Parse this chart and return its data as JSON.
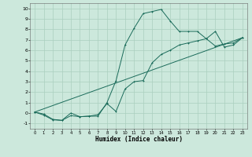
{
  "title": "",
  "xlabel": "Humidex (Indice chaleur)",
  "ylabel": "",
  "xlim": [
    -0.5,
    23.5
  ],
  "ylim": [
    -1.5,
    10.5
  ],
  "bg_color": "#cce8dc",
  "grid_color": "#aacfbf",
  "line_color": "#1a6b5a",
  "line1_x": [
    0,
    1,
    2,
    3,
    4,
    5,
    6,
    7,
    8,
    9,
    10,
    11,
    12,
    13,
    14,
    15,
    16,
    17,
    18,
    19,
    20,
    21,
    22,
    23
  ],
  "line1_y": [
    0.1,
    -0.2,
    -0.65,
    -0.7,
    -0.25,
    -0.35,
    -0.3,
    -0.3,
    1.0,
    3.1,
    6.5,
    8.1,
    9.5,
    9.7,
    9.9,
    8.8,
    7.8,
    7.8,
    7.8,
    7.1,
    7.8,
    6.3,
    6.5,
    7.2
  ],
  "line2_x": [
    0,
    1,
    2,
    3,
    4,
    5,
    6,
    7,
    8,
    9,
    10,
    11,
    12,
    13,
    14,
    15,
    16,
    17,
    18,
    19,
    20,
    21,
    22,
    23
  ],
  "line2_y": [
    0.1,
    -0.1,
    -0.6,
    -0.7,
    0.0,
    -0.35,
    -0.3,
    -0.15,
    0.9,
    0.15,
    2.3,
    3.0,
    3.1,
    4.8,
    5.6,
    6.0,
    6.5,
    6.7,
    6.9,
    7.1,
    6.4,
    6.6,
    6.7,
    7.2
  ],
  "line3_x": [
    0,
    23
  ],
  "line3_y": [
    0.1,
    7.2
  ]
}
